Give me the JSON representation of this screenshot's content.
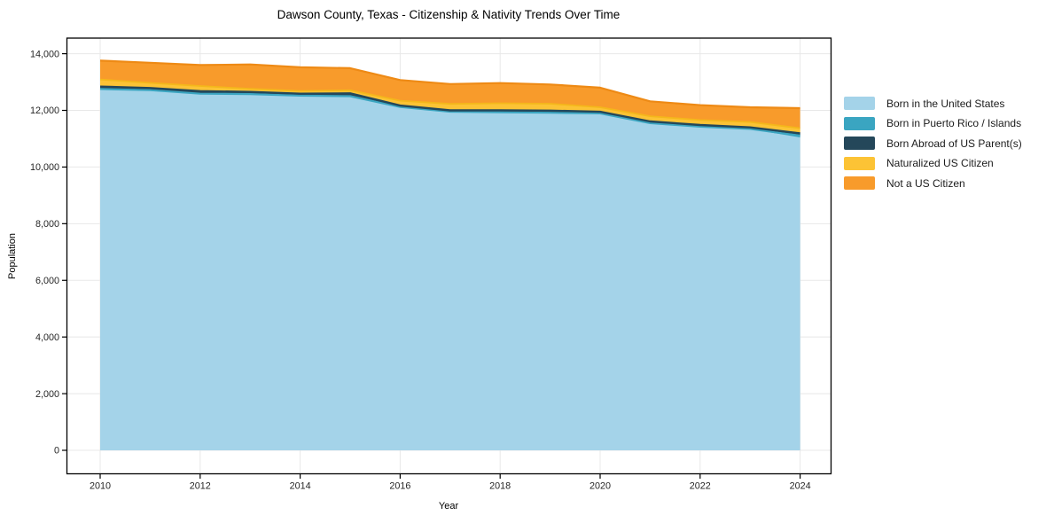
{
  "chart_data": {
    "type": "area",
    "stacked": true,
    "title": "Dawson County, Texas - Citizenship & Nativity Trends Over Time",
    "xlabel": "Year",
    "ylabel": "Population",
    "x": [
      2010,
      2011,
      2012,
      2013,
      2014,
      2015,
      2016,
      2017,
      2018,
      2019,
      2020,
      2021,
      2022,
      2023,
      2024
    ],
    "xticks": [
      2010,
      2012,
      2014,
      2016,
      2018,
      2020,
      2022,
      2024
    ],
    "yticks": [
      0,
      2000,
      4000,
      6000,
      8000,
      10000,
      12000,
      14000
    ],
    "ylim": [
      0,
      14000
    ],
    "grid": true,
    "legend_position": "right-outside",
    "series": [
      {
        "name": "Born in the United States",
        "color": "#a4d3e9",
        "line_color": "#a4d3e9",
        "values": [
          12725,
          12685,
          12560,
          12545,
          12490,
          12470,
          12090,
          11930,
          11910,
          11890,
          11870,
          11525,
          11400,
          11320,
          11030
        ]
      },
      {
        "name": "Born in Puerto Rico / Islands",
        "color": "#3aa5c1",
        "line_color": "#3aa5c1",
        "values": [
          30,
          30,
          30,
          30,
          30,
          30,
          30,
          25,
          25,
          25,
          25,
          25,
          25,
          25,
          80
        ]
      },
      {
        "name": "Born Abroad of US Parent(s)",
        "color": "#24475a",
        "line_color": "#24475a",
        "values": [
          85,
          75,
          90,
          75,
          70,
          100,
          50,
          45,
          65,
          75,
          55,
          60,
          60,
          55,
          80
        ]
      },
      {
        "name": "Naturalized US Citizen",
        "color": "#fcc335",
        "line_color": "#f4b71b",
        "values": [
          250,
          180,
          180,
          110,
          95,
          110,
          170,
          230,
          250,
          245,
          160,
          185,
          175,
          190,
          180
        ]
      },
      {
        "name": "Not a US Citizen",
        "color": "#f89b2b",
        "line_color": "#ee8a15",
        "values": [
          665,
          710,
          740,
          860,
          835,
          780,
          730,
          700,
          715,
          680,
          690,
          525,
          525,
          520,
          710
        ]
      }
    ],
    "colors": {
      "grid": "#e8e8e8",
      "frame": "#000000",
      "tick_label": "#262626",
      "background": "#ffffff"
    }
  }
}
